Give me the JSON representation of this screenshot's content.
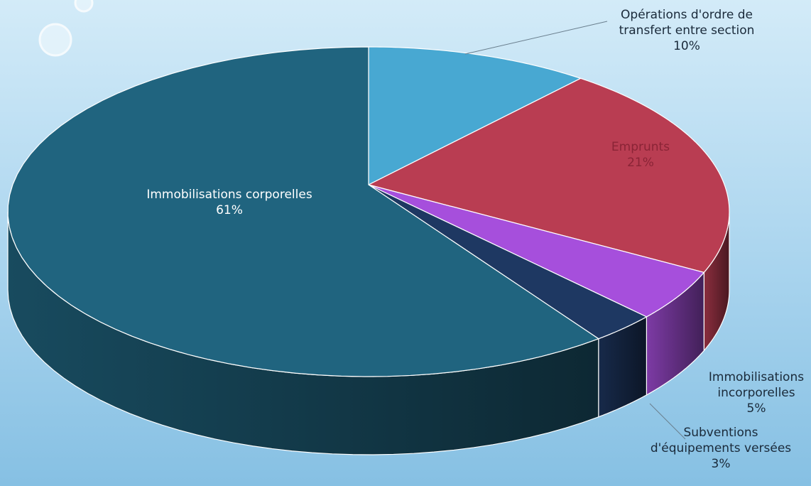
{
  "chart_data": {
    "type": "pie",
    "categories": [
      "Opérations d'ordre de transfert entre section",
      "Emprunts",
      "Immobilisations incorporelles",
      "Subventions d'équipements versées",
      "Immobilisations corporelles"
    ],
    "values": [
      10,
      21,
      5,
      3,
      61
    ],
    "value_labels": [
      "10%",
      "21%",
      "5%",
      "3%",
      "61%"
    ],
    "colors": [
      "#48a8d2",
      "#b93d52",
      "#a64fdc",
      "#1e3862",
      "#20647f"
    ]
  }
}
